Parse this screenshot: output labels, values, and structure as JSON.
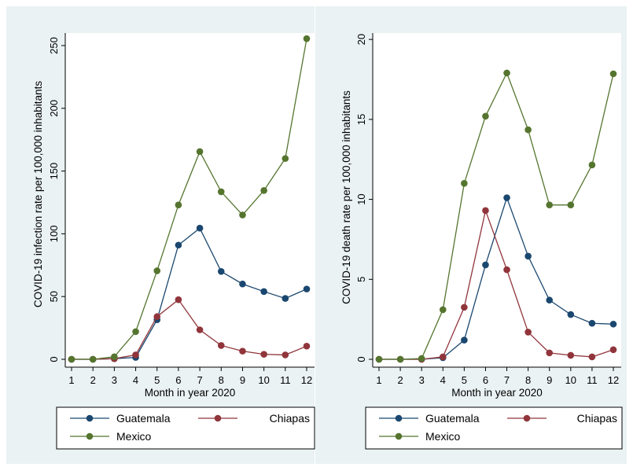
{
  "chart_data": [
    {
      "type": "line",
      "xlabel": "Month in year 2020",
      "ylabel": "COVID-19 infection rate per 100,000 inhabitants",
      "x": [
        1,
        2,
        3,
        4,
        5,
        6,
        7,
        8,
        9,
        10,
        11,
        12
      ],
      "xticks": [
        "1",
        "2",
        "3",
        "4",
        "5",
        "6",
        "7",
        "8",
        "9",
        "10",
        "11",
        "12"
      ],
      "ylim": [
        0,
        260
      ],
      "yticks": [
        "0",
        "50",
        "100",
        "150",
        "200",
        "250"
      ],
      "ytick_values": [
        0,
        50,
        100,
        150,
        200,
        250
      ],
      "grid": false,
      "legend_position": "bottom",
      "series": [
        {
          "name": "Guatemala",
          "color": "#1a476f",
          "values": [
            0,
            0,
            0.5,
            1.5,
            31.5,
            91,
            104.5,
            70,
            60,
            54,
            48.5,
            56
          ]
        },
        {
          "name": "Chiapas",
          "color": "#90353b",
          "values": [
            0,
            0,
            0.5,
            3.5,
            34,
            47.5,
            23.5,
            11,
            6.5,
            4,
            3.5,
            10.5
          ]
        },
        {
          "name": "Mexico",
          "color": "#55752f",
          "values": [
            0,
            0,
            2,
            22,
            70.5,
            123,
            165.5,
            133.5,
            115,
            134.5,
            160,
            255.5
          ]
        }
      ]
    },
    {
      "type": "line",
      "xlabel": "Month in year 2020",
      "ylabel": "COVID-19 death rate per 100,000 inhabitants",
      "x": [
        1,
        2,
        3,
        4,
        5,
        6,
        7,
        8,
        9,
        10,
        11,
        12
      ],
      "xticks": [
        "1",
        "2",
        "3",
        "4",
        "5",
        "6",
        "7",
        "8",
        "9",
        "10",
        "11",
        "12"
      ],
      "ylim": [
        0,
        20.4
      ],
      "yticks": [
        "0",
        "5",
        "10",
        "15",
        "20"
      ],
      "ytick_values": [
        0,
        5,
        10,
        15,
        20
      ],
      "grid": false,
      "legend_position": "bottom",
      "series": [
        {
          "name": "Guatemala",
          "color": "#1a476f",
          "values": [
            0,
            0,
            0,
            0.1,
            1.2,
            5.9,
            10.1,
            6.45,
            3.7,
            2.8,
            2.25,
            2.2
          ]
        },
        {
          "name": "Chiapas",
          "color": "#90353b",
          "values": [
            0,
            0,
            0,
            0.15,
            3.25,
            9.3,
            5.6,
            1.7,
            0.4,
            0.25,
            0.15,
            0.6
          ]
        },
        {
          "name": "Mexico",
          "color": "#55752f",
          "values": [
            0,
            0,
            0.05,
            3.1,
            11,
            15.2,
            17.9,
            14.35,
            9.65,
            9.65,
            12.15,
            17.85
          ]
        }
      ]
    }
  ]
}
